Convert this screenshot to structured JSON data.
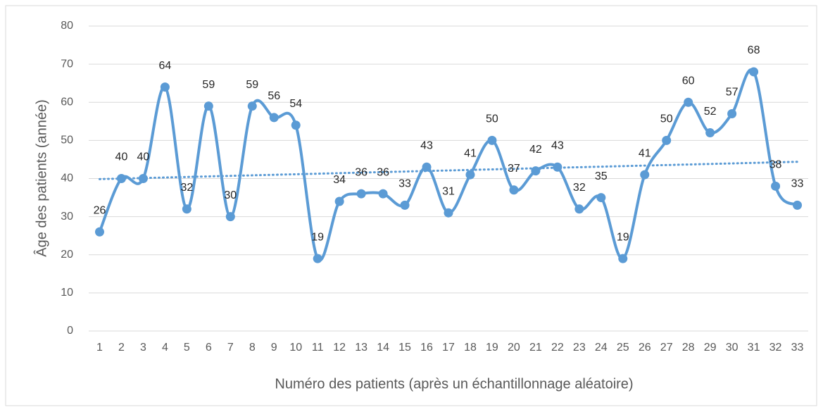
{
  "chart_data": {
    "type": "line",
    "x_label": "Numéro des patients (après un échantillonnage aléatoire)",
    "y_label": "Âge des patients (année)",
    "categories": [
      1,
      2,
      3,
      4,
      5,
      6,
      7,
      8,
      9,
      10,
      11,
      12,
      13,
      14,
      15,
      16,
      17,
      18,
      19,
      20,
      21,
      22,
      23,
      24,
      25,
      26,
      27,
      28,
      29,
      30,
      31,
      32,
      33
    ],
    "series": [
      {
        "color": "#5b9bd5",
        "values": [
          26,
          40,
          40,
          64,
          32,
          59,
          30,
          59,
          56,
          54,
          19,
          34,
          36,
          36,
          33,
          43,
          31,
          41,
          50,
          37,
          42,
          43,
          32,
          35,
          19,
          41,
          50,
          60,
          52,
          57,
          68,
          38,
          33
        ]
      }
    ],
    "ylim": [
      0,
      80
    ],
    "yticks": [
      0,
      10,
      20,
      30,
      40,
      50,
      60,
      70,
      80
    ],
    "grid": true,
    "smooth": true,
    "markers": true,
    "data_labels": true,
    "trendline": "linear"
  }
}
